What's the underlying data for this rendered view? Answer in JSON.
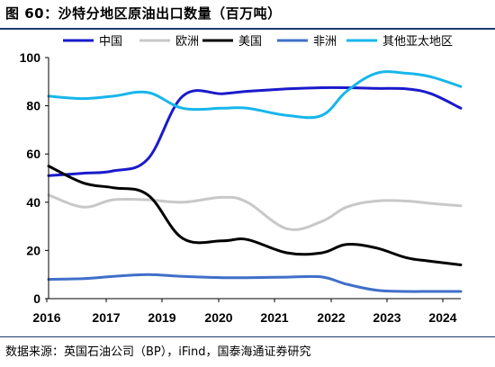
{
  "title": "图 60：沙特分地区原油出口数量（百万吨）",
  "source": "数据来源：英国石油公司（BP），iFind，国泰海通证券研究",
  "chart_data": {
    "type": "line",
    "x": [
      2016,
      2016.7,
      2017.3,
      2018.0,
      2018.7,
      2019.5,
      2020.0,
      2020.8,
      2021.5,
      2022.0,
      2022.6,
      2023.2,
      2023.7,
      2024.3
    ],
    "xticks": [
      "2016",
      "2017",
      "2019",
      "2020",
      "2021",
      "2022",
      "2023",
      "2024"
    ],
    "ylim": [
      0,
      100
    ],
    "yticks": [
      "0",
      "20",
      "40",
      "60",
      "80",
      "100"
    ],
    "legend_position": "top",
    "series": [
      {
        "name": "中国",
        "color": "#1a1acc",
        "values": [
          51,
          52,
          53,
          58,
          84,
          85,
          86,
          87,
          87.5,
          87.5,
          87.2,
          87,
          85,
          79
        ]
      },
      {
        "name": "欧洲",
        "color": "#c8c8c8",
        "values": [
          43,
          38,
          41,
          41,
          40,
          42,
          40,
          29,
          32,
          38,
          40.5,
          40.5,
          39.5,
          38.5
        ]
      },
      {
        "name": "美国",
        "color": "#000000",
        "values": [
          55,
          48,
          46,
          43,
          25,
          24,
          24.5,
          19,
          19,
          22.5,
          21,
          17,
          15.5,
          14
        ]
      },
      {
        "name": "非洲",
        "color": "#3f6fc9",
        "values": [
          8,
          8.3,
          9.2,
          10,
          9.2,
          8.7,
          8.7,
          8.9,
          9,
          6,
          3.5,
          3,
          3,
          3
        ]
      },
      {
        "name": "其他亚太地区",
        "color": "#17b6ea",
        "values": [
          84,
          83,
          84,
          85.5,
          79,
          79,
          79,
          76,
          76,
          86,
          93.5,
          93.5,
          92,
          88
        ]
      }
    ]
  }
}
